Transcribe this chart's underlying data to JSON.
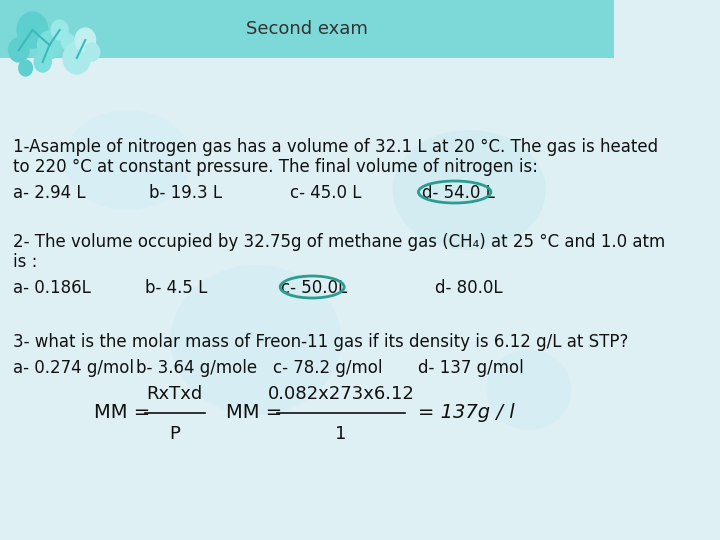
{
  "title": "Second exam",
  "header_bg": "#7dd8d8",
  "body_bg": "#dff0f5",
  "title_color": "#333333",
  "text_color": "#111111",
  "q1_line1": "1-Asample of nitrogen gas has a volume of 32.1 L at 20 °C. The gas is heated",
  "q1_line2": "to 220 °C at constant pressure. The final volume of nitrogen is:",
  "q1_answers": [
    "a- 2.94 L",
    "b- 19.3 L",
    "c- 45.0 L",
    "d- 54.0 L"
  ],
  "q1_correct": 3,
  "q2_line1": "2- The volume occupied by 32.75g of methane gas (CH₄) at 25 °C and 1.0 atm",
  "q2_line2": "is :",
  "q2_answers": [
    "a- 0.186L",
    "b- 4.5 L",
    "c- 50.0L",
    "d- 80.0L"
  ],
  "q2_correct": 2,
  "q3_line1": "3- what is the molar mass of Freon-11 gas if its density is 6.12 g/L at STP?",
  "q3_answers": [
    "a- 0.274 g/mol",
    "b- 3.64 g/mole",
    "c- 78.2 g/mol",
    "d- 137 g/mol"
  ],
  "q3_correct": -1,
  "circle_color": "#2a9d8f",
  "font_size_body": 12,
  "font_size_title": 13,
  "font_size_answers": 12
}
